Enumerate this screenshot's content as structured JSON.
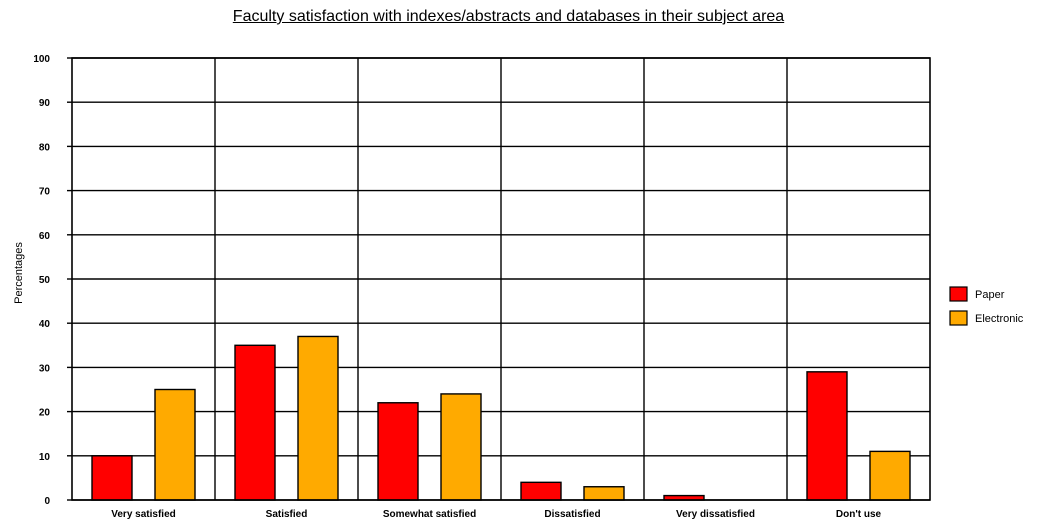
{
  "chart_data": {
    "type": "bar",
    "title": "Faculty satisfaction with indexes/abstracts and databases in their subject area",
    "xlabel": "",
    "ylabel": "Percentages",
    "ylim": [
      0,
      100
    ],
    "yticks": [
      0,
      10,
      20,
      30,
      40,
      50,
      60,
      70,
      80,
      90,
      100
    ],
    "categories": [
      "Very satisfied",
      "Satisfied",
      "Somewhat satisfied",
      "Dissatisfied",
      "Very dissatisfied",
      "Don't use"
    ],
    "series": [
      {
        "name": "Paper",
        "color": "#ff0000",
        "values": [
          10,
          35,
          22,
          4,
          1,
          29
        ]
      },
      {
        "name": "Electronic",
        "color": "#ffaa00",
        "values": [
          25,
          37,
          24,
          3,
          0,
          11
        ]
      }
    ],
    "grid": true,
    "legend_position": "right"
  }
}
